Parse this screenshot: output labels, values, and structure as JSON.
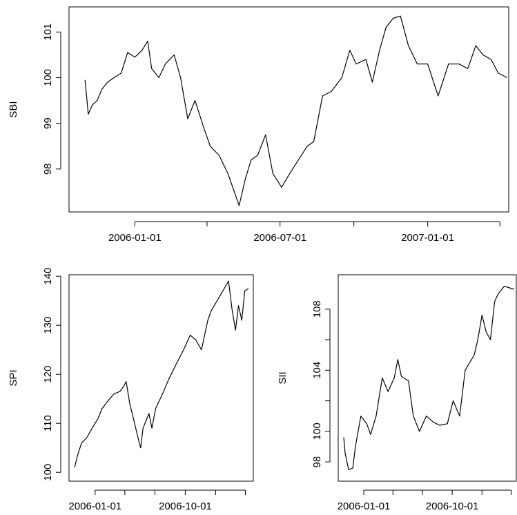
{
  "chart_data": [
    {
      "type": "line",
      "ylabel": "SBI",
      "color": "#000000",
      "xlim": [
        "2005-10-11",
        "2007-04-12"
      ],
      "ylim": [
        97.06,
        101.55
      ],
      "xticks": [
        {
          "value": "2006-01-01",
          "label": "2006-01-01"
        },
        {
          "value": "2006-04-01",
          "label": null
        },
        {
          "value": "2006-07-01",
          "label": "2006-07-01"
        },
        {
          "value": "2006-10-01",
          "label": null
        },
        {
          "value": "2007-01-01",
          "label": "2007-01-01"
        },
        {
          "value": "2007-04-01",
          "label": null
        }
      ],
      "yticks": [
        98,
        99,
        100,
        101
      ],
      "x": [
        "2005-10-31",
        "2005-11-04",
        "2005-11-09",
        "2005-11-15",
        "2005-11-21",
        "2005-11-28",
        "2005-12-06",
        "2005-12-15",
        "2005-12-23",
        "2006-01-01",
        "2006-01-10",
        "2006-01-17",
        "2006-01-22",
        "2006-01-31",
        "2006-02-08",
        "2006-02-19",
        "2006-02-27",
        "2006-03-08",
        "2006-03-17",
        "2006-03-28",
        "2006-04-05",
        "2006-04-16",
        "2006-04-27",
        "2006-05-05",
        "2006-05-11",
        "2006-05-19",
        "2006-05-26",
        "2006-06-03",
        "2006-06-13",
        "2006-06-22",
        "2006-07-03",
        "2006-07-13",
        "2006-07-24",
        "2006-08-04",
        "2006-08-12",
        "2006-08-23",
        "2006-09-03",
        "2006-09-16",
        "2006-09-26",
        "2006-10-04",
        "2006-10-16",
        "2006-10-24",
        "2006-11-02",
        "2006-11-10",
        "2006-11-19",
        "2006-11-28",
        "2006-12-08",
        "2006-12-19",
        "2007-01-01",
        "2007-01-14",
        "2007-01-27",
        "2007-02-09",
        "2007-02-20",
        "2007-03-02",
        "2007-03-11",
        "2007-03-21",
        "2007-03-30",
        "2007-04-10"
      ],
      "values": [
        99.95,
        99.2,
        99.4,
        99.5,
        99.75,
        99.9,
        100.0,
        100.1,
        100.55,
        100.45,
        100.6,
        100.8,
        100.2,
        100.0,
        100.3,
        100.5,
        100.0,
        99.1,
        99.5,
        98.9,
        98.5,
        98.3,
        97.9,
        97.5,
        97.2,
        97.8,
        98.2,
        98.3,
        98.75,
        97.9,
        97.6,
        97.9,
        98.2,
        98.5,
        98.6,
        99.6,
        99.7,
        100.0,
        100.6,
        100.3,
        100.4,
        99.9,
        100.6,
        101.1,
        101.3,
        101.35,
        100.7,
        100.3,
        100.3,
        99.6,
        100.3,
        100.3,
        100.2,
        100.7,
        100.5,
        100.4,
        100.1,
        100.0
      ]
    },
    {
      "type": "line",
      "ylabel": "SPI",
      "color": "#000000",
      "xlim": [
        "2005-10-14",
        "2007-04-25"
      ],
      "ylim": [
        98.2,
        140.3
      ],
      "xticks": [
        {
          "value": "2006-01-01",
          "label": "2006-01-01"
        },
        {
          "value": "2006-04-01",
          "label": null
        },
        {
          "value": "2006-07-01",
          "label": null
        },
        {
          "value": "2006-10-01",
          "label": "2006-10-01"
        },
        {
          "value": "2007-01-01",
          "label": null
        },
        {
          "value": "2007-04-01",
          "label": null
        }
      ],
      "yticks": [
        100,
        110,
        120,
        130,
        140
      ],
      "x": [
        "2005-10-31",
        "2005-11-09",
        "2005-11-21",
        "2005-12-06",
        "2005-12-23",
        "2006-01-10",
        "2006-01-22",
        "2006-02-08",
        "2006-02-27",
        "2006-03-17",
        "2006-03-28",
        "2006-04-05",
        "2006-04-16",
        "2006-04-27",
        "2006-05-11",
        "2006-05-19",
        "2006-05-26",
        "2006-06-13",
        "2006-06-22",
        "2006-07-03",
        "2006-07-24",
        "2006-08-12",
        "2006-09-03",
        "2006-09-26",
        "2006-10-16",
        "2006-11-02",
        "2006-11-19",
        "2006-12-08",
        "2006-12-19",
        "2007-01-14",
        "2007-02-09",
        "2007-02-20",
        "2007-03-02",
        "2007-03-11",
        "2007-03-21",
        "2007-03-30",
        "2007-04-10"
      ],
      "values": [
        101,
        103.5,
        106,
        107,
        109,
        111,
        113,
        114.5,
        116,
        116.5,
        117.5,
        118.5,
        114,
        111,
        107,
        105,
        109,
        112,
        109,
        113,
        116,
        119,
        122,
        125,
        128,
        127,
        125,
        131,
        133,
        136,
        139,
        133,
        129,
        134,
        131,
        137,
        137.5
      ]
    },
    {
      "type": "line",
      "ylabel": "SII",
      "color": "#000000",
      "xlim": [
        "2005-10-14",
        "2007-04-17"
      ],
      "ylim": [
        96.74,
        110.25
      ],
      "xticks": [
        {
          "value": "2006-01-01",
          "label": "2006-01-01"
        },
        {
          "value": "2006-04-01",
          "label": null
        },
        {
          "value": "2006-07-01",
          "label": null
        },
        {
          "value": "2006-10-01",
          "label": "2006-10-01"
        },
        {
          "value": "2007-01-01",
          "label": null
        },
        {
          "value": "2007-04-01",
          "label": null
        }
      ],
      "yticks": [
        98,
        100,
        {
          "value": 102,
          "label": null
        },
        104,
        {
          "value": 106,
          "label": null
        },
        108
      ],
      "x": [
        "2005-10-31",
        "2005-11-04",
        "2005-11-15",
        "2005-11-28",
        "2005-12-06",
        "2005-12-23",
        "2006-01-10",
        "2006-01-22",
        "2006-02-08",
        "2006-02-27",
        "2006-03-17",
        "2006-04-05",
        "2006-04-16",
        "2006-04-27",
        "2006-05-19",
        "2006-06-03",
        "2006-06-22",
        "2006-07-13",
        "2006-08-04",
        "2006-08-23",
        "2006-09-16",
        "2006-10-04",
        "2006-10-24",
        "2006-11-10",
        "2006-12-08",
        "2006-12-19",
        "2007-01-01",
        "2007-01-14",
        "2007-01-27",
        "2007-02-09",
        "2007-02-20",
        "2007-03-11",
        "2007-04-10"
      ],
      "values": [
        99.6,
        98.6,
        97.5,
        97.6,
        99,
        101,
        100.5,
        99.8,
        101,
        103.5,
        102.6,
        103.5,
        104.7,
        103.6,
        103.3,
        101,
        100,
        101,
        100.6,
        100.4,
        100.5,
        102,
        101,
        104,
        105,
        106,
        107.6,
        106.5,
        106,
        108.5,
        109,
        109.5,
        109.3
      ]
    }
  ]
}
